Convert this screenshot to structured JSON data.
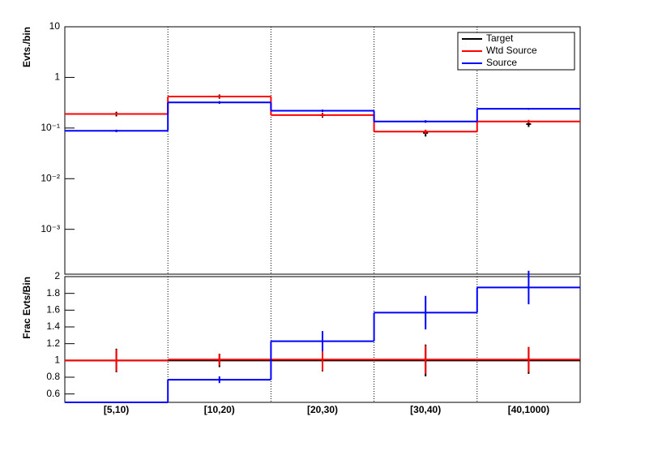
{
  "chart_data": [
    {
      "type": "step",
      "ylabel": "Evts./bin",
      "log_y": true,
      "ylim": [
        0.00013,
        10
      ],
      "yticks": [
        10,
        1,
        {
          "value": 0.1,
          "label": "10⁻¹"
        },
        {
          "value": 0.01,
          "label": "10⁻²"
        },
        {
          "value": 0.001,
          "label": "10⁻³"
        }
      ],
      "xgrid": true,
      "legend": "top-right",
      "series": [
        {
          "name": "Target",
          "color": "#000000",
          "style": "errorbar",
          "values": [
            0.19,
            0.42,
            0.18,
            0.08,
            0.12
          ],
          "errors": [
            0.02,
            0.04,
            0.02,
            0.012,
            0.015
          ]
        },
        {
          "name": "Wtd Source",
          "color": "#ff0000",
          "style": "step",
          "values": [
            0.19,
            0.42,
            0.18,
            0.085,
            0.135
          ],
          "errors": [
            0.01,
            0.03,
            0.015,
            0.008,
            0.01
          ]
        },
        {
          "name": "Source",
          "color": "#0000ff",
          "style": "step",
          "values": [
            0.088,
            0.32,
            0.22,
            0.135,
            0.24
          ],
          "errors": [
            0.005,
            0.02,
            0.012,
            0.008,
            0.01
          ]
        }
      ]
    },
    {
      "type": "step",
      "ylabel": "Frac Evts/Bin",
      "ylim": [
        0.5,
        2
      ],
      "yticks": [
        0.6,
        0.8,
        1,
        1.2,
        1.4,
        1.6,
        1.8,
        2
      ],
      "xgrid": true,
      "categories": [
        "[5,10)",
        "[10,20)",
        "[20,30)",
        "[30,40)",
        "[40,1000)"
      ],
      "series": [
        {
          "color": "#000000",
          "style": "step",
          "values": [
            1,
            1,
            1,
            1,
            1
          ],
          "errors": [
            0.14,
            0.08,
            0.13,
            0.19,
            0.16
          ]
        },
        {
          "color": "#ff0000",
          "style": "step",
          "values": [
            1,
            1.01,
            1.01,
            1.01,
            1.01
          ],
          "errors": [
            0.13,
            0.07,
            0.13,
            0.17,
            0.15
          ]
        },
        {
          "color": "#0000ff",
          "style": "step",
          "values": [
            0.5,
            0.77,
            1.23,
            1.57,
            1.87
          ],
          "errors": [
            0,
            0.04,
            0.12,
            0.2,
            0.2
          ]
        }
      ]
    }
  ]
}
